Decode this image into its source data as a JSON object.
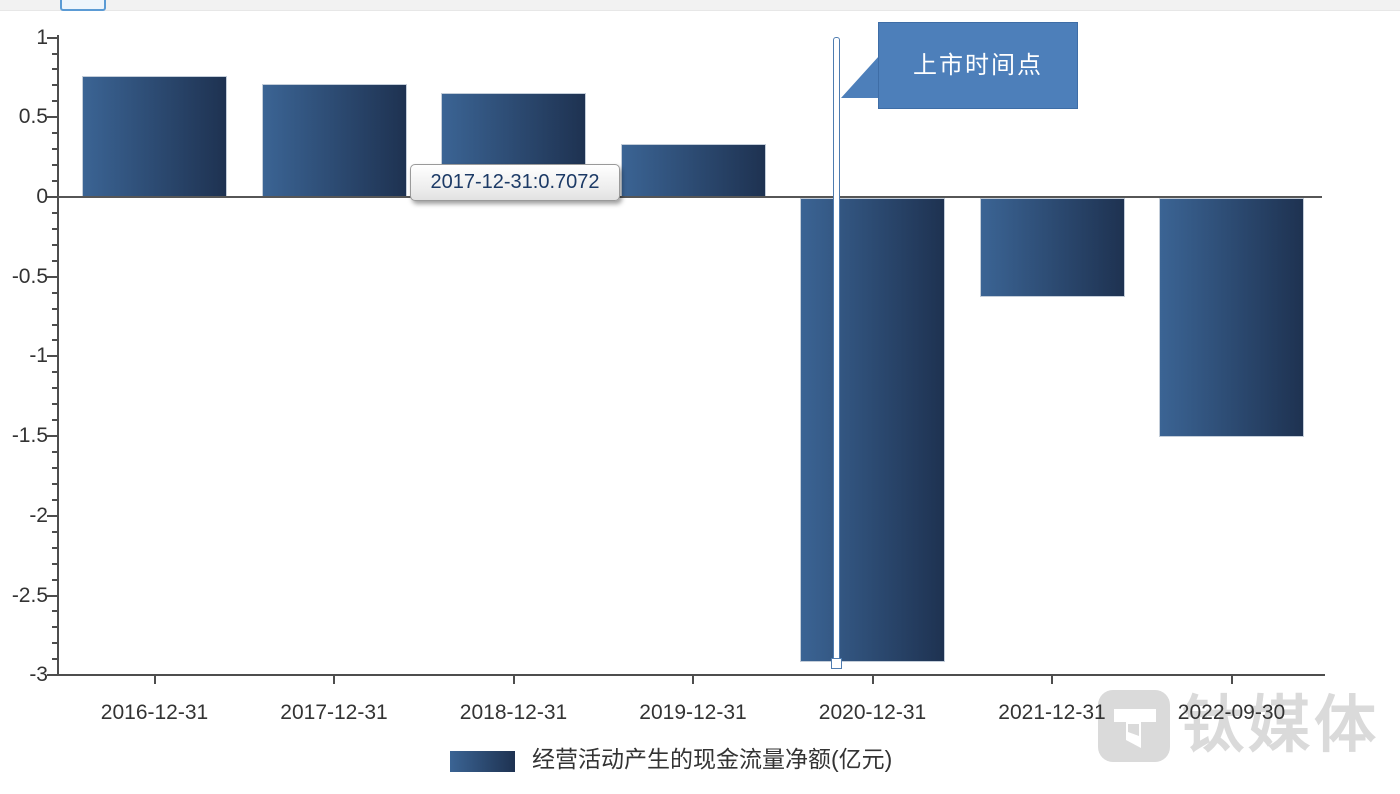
{
  "chart_data": {
    "type": "bar",
    "title": "",
    "categories": [
      "2016-12-31",
      "2017-12-31",
      "2018-12-31",
      "2019-12-31",
      "2020-12-31",
      "2021-12-31",
      "2022-09-30"
    ],
    "values": [
      0.76,
      0.7072,
      0.65,
      0.33,
      -2.91,
      -0.62,
      -1.5
    ],
    "series_name": "经营活动产生的现金流量净额(亿元)",
    "xlabel": "",
    "ylabel": "",
    "ylim": [
      -3,
      1
    ],
    "y_major_step": 0.5,
    "y_minor_step": 0.1,
    "y_tick_labels_top_to_bottom": [
      "1",
      "0.5",
      "0",
      "-0.5",
      "-1",
      "-1.5",
      "-2",
      "-2.5",
      "-3"
    ],
    "grid": false,
    "legend_position": "bottom",
    "bar_color_left": "#3b6494",
    "bar_color_right": "#1e3251"
  },
  "tooltip": {
    "text": "2017-12-31:0.7072"
  },
  "annotation": {
    "flag_label": "上市时间点",
    "flag_category": "2020-12-31",
    "flag_color": "#4d7fba"
  },
  "legend": {
    "label": "经营活动产生的现金流量净额(亿元)"
  },
  "watermark": {
    "text": "钛媒体",
    "logo": "tmtpost-logo",
    "color": "#dadada"
  }
}
